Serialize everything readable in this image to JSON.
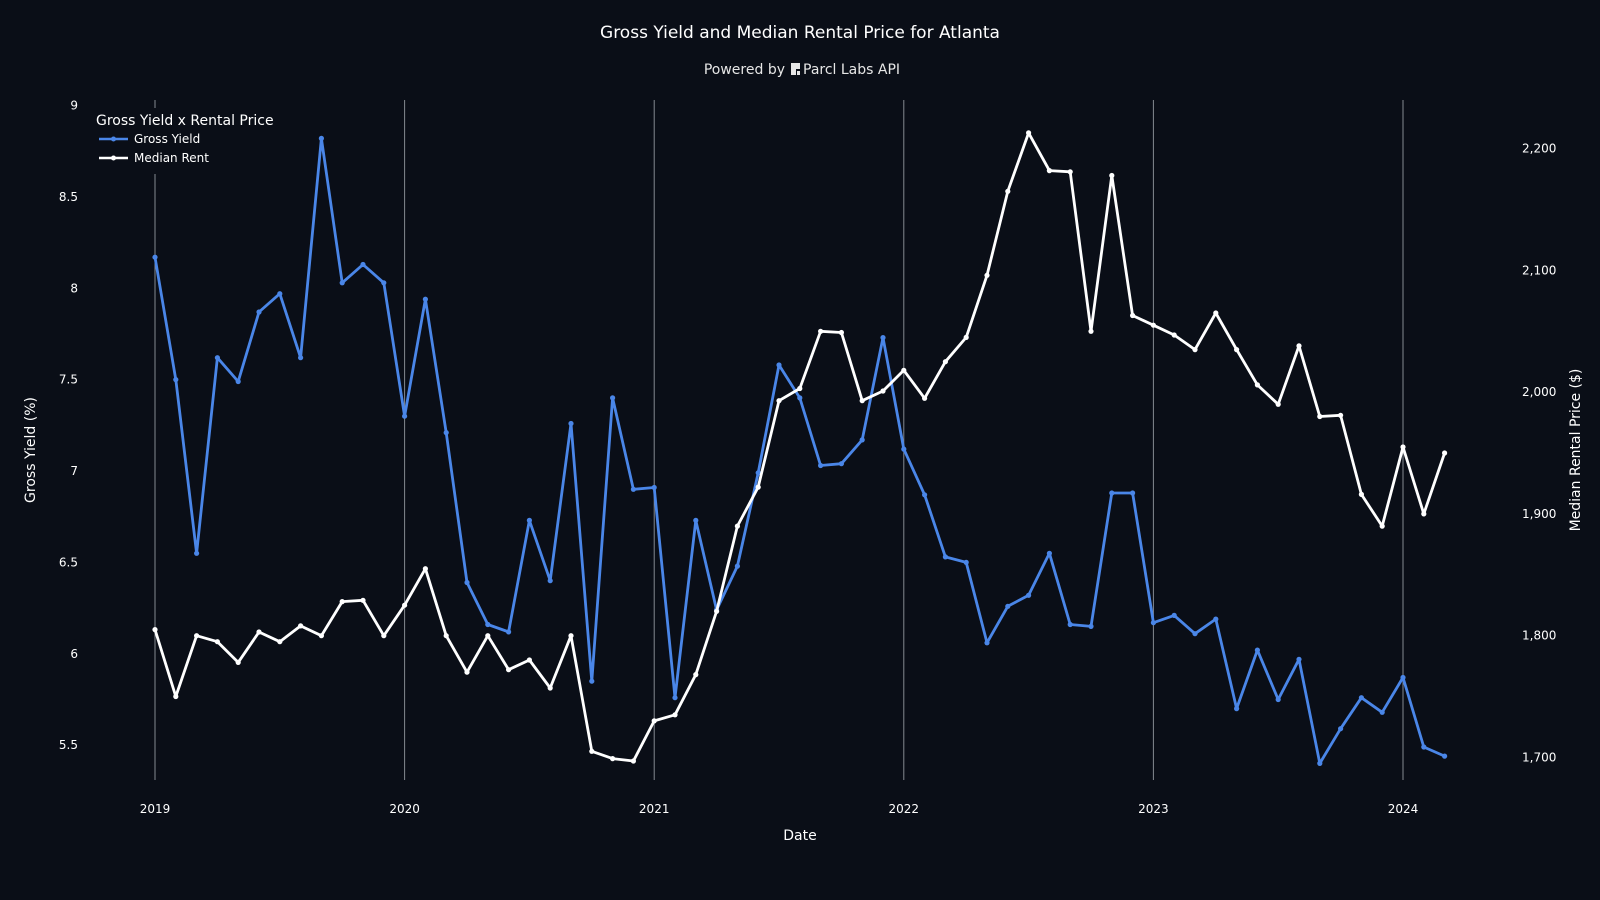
{
  "chart_data": {
    "type": "line",
    "title": "Gross Yield and Median Rental Price for Atlanta",
    "subtitle": "Powered by",
    "subtitle_brand": "Parcl Labs API",
    "xlabel": "Date",
    "ylabel_left": "Gross Yield (%)",
    "ylabel_right": "Median Rental Price ($)",
    "x_ticks": [
      "2019",
      "2020",
      "2021",
      "2022",
      "2023",
      "2024"
    ],
    "y_left_ticks": [
      "9",
      "8.5",
      "8",
      "7.5",
      "7",
      "6.5",
      "6",
      "5.5"
    ],
    "y_right_ticks": [
      "2,200",
      "2,100",
      "2,000",
      "1,900",
      "1,800",
      "1,700"
    ],
    "y_left_range": [
      5.2,
      9.03
    ],
    "y_right_range": [
      1665,
      2240
    ],
    "legend": {
      "title": "Gross Yield x Rental Price",
      "position": "top-left"
    },
    "grid": {
      "x": true,
      "y": false
    },
    "dates": [
      "2019-01",
      "2019-02",
      "2019-03",
      "2019-04",
      "2019-05",
      "2019-06",
      "2019-07",
      "2019-08",
      "2019-09",
      "2019-10",
      "2019-11",
      "2019-12",
      "2020-01",
      "2020-02",
      "2020-03",
      "2020-04",
      "2020-05",
      "2020-06",
      "2020-07",
      "2020-08",
      "2020-09",
      "2020-10",
      "2020-11",
      "2020-12",
      "2021-01",
      "2021-02",
      "2021-03",
      "2021-04",
      "2021-05",
      "2021-06",
      "2021-07",
      "2021-08",
      "2021-09",
      "2021-10",
      "2021-11",
      "2021-12",
      "2022-01",
      "2022-02",
      "2022-03",
      "2022-04",
      "2022-05",
      "2022-06",
      "2022-07",
      "2022-08",
      "2022-09",
      "2022-10",
      "2022-11",
      "2022-12",
      "2023-01",
      "2023-02",
      "2023-03",
      "2023-04",
      "2023-05",
      "2023-06",
      "2023-07",
      "2023-08",
      "2023-09",
      "2023-10",
      "2023-11",
      "2023-12",
      "2024-01",
      "2024-02",
      "2024-03"
    ],
    "series": [
      {
        "name": "Gross Yield",
        "axis": "left",
        "color": "#4a86e8",
        "values": [
          8.17,
          7.5,
          6.55,
          7.62,
          7.49,
          7.87,
          7.97,
          7.62,
          8.82,
          8.03,
          8.13,
          8.03,
          7.3,
          7.94,
          7.21,
          6.39,
          6.16,
          6.12,
          6.73,
          6.4,
          7.26,
          5.85,
          7.4,
          6.9,
          6.91,
          5.76,
          6.73,
          6.24,
          6.48,
          6.99,
          7.58,
          7.4,
          7.03,
          7.04,
          7.17,
          7.73,
          7.12,
          6.87,
          6.53,
          6.5,
          6.06,
          6.26,
          6.32,
          6.55,
          6.16,
          6.15,
          6.88,
          6.88,
          6.17,
          6.21,
          6.11,
          6.19,
          5.7,
          6.02,
          5.75,
          5.97,
          5.4,
          5.59,
          5.76,
          5.68,
          5.87,
          5.49,
          5.44
        ]
      },
      {
        "name": "Median Rent",
        "axis": "right",
        "color": "#ffffff",
        "values": [
          1805,
          1750,
          1800,
          1795,
          1778,
          1803,
          1795,
          1808,
          1800,
          1828,
          1829,
          1800,
          1825,
          1855,
          1800,
          1770,
          1800,
          1772,
          1780,
          1757,
          1800,
          1705,
          1699,
          1697,
          1730,
          1735,
          1768,
          1820,
          1890,
          1922,
          1993,
          2003,
          2050,
          2049,
          1993,
          2001,
          2018,
          1995,
          2025,
          2045,
          2096,
          2165,
          2213,
          2182,
          2181,
          2050,
          2178,
          2063,
          2055,
          2047,
          2035,
          2065,
          2035,
          2006,
          1990,
          2038,
          1980,
          1981,
          1916,
          1890,
          1955,
          1900,
          1950
        ]
      }
    ]
  }
}
